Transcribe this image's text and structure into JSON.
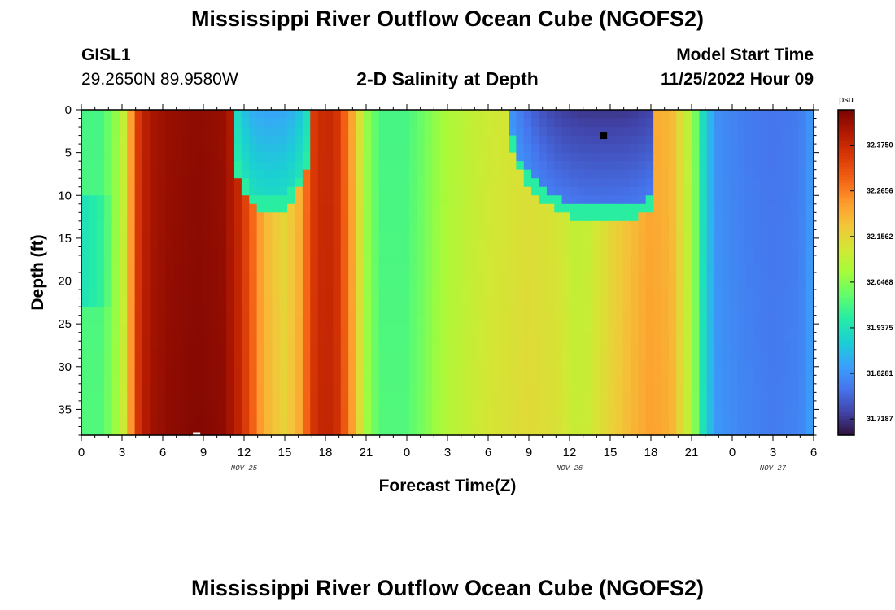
{
  "header": {
    "title_top": "Mississippi River Outflow Ocean Cube (NGOFS2)",
    "station": "GISL1",
    "coords": "29.2650N  89.9580W",
    "subtitle": "2-D Salinity at Depth",
    "model_label": "Model Start Time",
    "model_time": "11/25/2022 Hour 09",
    "title_bottom": "Mississippi River Outflow Ocean Cube (NGOFS2)"
  },
  "colors": {
    "palette": [
      "#30123b",
      "#4145ab",
      "#4675ed",
      "#39a2fc",
      "#1bcfd4",
      "#24eca6",
      "#61fc6c",
      "#a4fc3b",
      "#d1e834",
      "#f3c63a",
      "#fe9b2d",
      "#f36315",
      "#d93806",
      "#b11901",
      "#7a0402"
    ]
  },
  "chart_data": {
    "type": "heatmap",
    "xlabel": "Forecast Time(Z)",
    "ylabel": "Depth (ft)",
    "colorbar_unit": "psu",
    "x_range_hours": [
      0,
      54
    ],
    "y_range_ft": [
      0,
      38
    ],
    "x_tick_labels": [
      "0",
      "3",
      "6",
      "9",
      "12",
      "15",
      "18",
      "21",
      "0",
      "3",
      "6",
      "9",
      "12",
      "15",
      "18",
      "21",
      "0",
      "3",
      "6"
    ],
    "y_tick_labels": [
      "0",
      "5",
      "10",
      "15",
      "20",
      "25",
      "30",
      "35"
    ],
    "y_tick_values": [
      0,
      5,
      10,
      15,
      20,
      25,
      30,
      35
    ],
    "date_labels": [
      {
        "text": "NOV 25",
        "hour": 12
      },
      {
        "text": "NOV 26",
        "hour": 36
      },
      {
        "text": "NOV 27",
        "hour": 51
      }
    ],
    "colorbar_ticks": [
      "32.3750",
      "32.2656",
      "32.1562",
      "32.0468",
      "31.9375",
      "31.8281",
      "31.7187"
    ],
    "value_range": [
      31.68,
      32.46
    ],
    "time_profile": [
      {
        "h": 0,
        "v": 31.99
      },
      {
        "h": 1.5,
        "v": 31.99
      },
      {
        "h": 2.5,
        "v": 32.05
      },
      {
        "h": 3.3,
        "v": 32.13
      },
      {
        "h": 4,
        "v": 32.33
      },
      {
        "h": 5,
        "v": 32.41
      },
      {
        "h": 6.5,
        "v": 32.43
      },
      {
        "h": 8.5,
        "v": 32.44
      },
      {
        "h": 10.5,
        "v": 32.43
      },
      {
        "h": 11.5,
        "v": 32.38
      },
      {
        "h": 12.5,
        "v": 32.3
      },
      {
        "h": 13.5,
        "v": 32.2
      },
      {
        "h": 15,
        "v": 32.15
      },
      {
        "h": 16,
        "v": 32.2
      },
      {
        "h": 17,
        "v": 32.34
      },
      {
        "h": 18,
        "v": 32.38
      },
      {
        "h": 19,
        "v": 32.35
      },
      {
        "h": 20,
        "v": 32.22
      },
      {
        "h": 21,
        "v": 32.06
      },
      {
        "h": 22,
        "v": 31.99
      },
      {
        "h": 24,
        "v": 31.99
      },
      {
        "h": 27,
        "v": 32.08
      },
      {
        "h": 30,
        "v": 32.12
      },
      {
        "h": 33,
        "v": 32.14
      },
      {
        "h": 35,
        "v": 32.13
      },
      {
        "h": 36.5,
        "v": 32.1
      },
      {
        "h": 37.5,
        "v": 32.11
      },
      {
        "h": 39,
        "v": 32.15
      },
      {
        "h": 40.5,
        "v": 32.19
      },
      {
        "h": 42,
        "v": 32.22
      },
      {
        "h": 43.5,
        "v": 32.2
      },
      {
        "h": 45,
        "v": 32.08
      },
      {
        "h": 46,
        "v": 31.9
      },
      {
        "h": 47,
        "v": 31.82
      },
      {
        "h": 49,
        "v": 31.8
      },
      {
        "h": 51,
        "v": 31.79
      },
      {
        "h": 53,
        "v": 31.8
      },
      {
        "h": 54,
        "v": 31.84
      }
    ],
    "fresh_pockets": [
      {
        "h0": 11,
        "h1": 17,
        "hc": 14,
        "bottom_ft": 10.5,
        "v": 31.85
      },
      {
        "h0": 31.5,
        "h1": 42,
        "hc": 38.5,
        "bottom_ft": 11.5,
        "v": 31.72
      }
    ],
    "left_column": {
      "h1": 2.5,
      "v": 31.93,
      "top_ft": 10,
      "bottom_ft": 23
    },
    "markers": [
      {
        "name": "marker-black",
        "hour": 38.5,
        "depth_ft": 3,
        "color": "#000000"
      },
      {
        "name": "marker-white",
        "hour": 8.5,
        "depth_ft": 38,
        "color": "#ffffff"
      }
    ]
  }
}
